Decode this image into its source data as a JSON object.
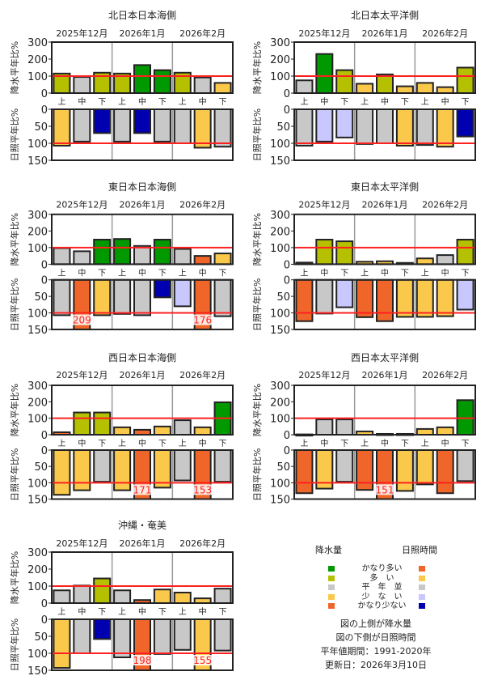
{
  "colors": {
    "precip": {
      "vh": "#009900",
      "h": "#b4c000",
      "n": "#c8c8c8",
      "l": "#fac84a",
      "vl": "#f0662a"
    },
    "sun": {
      "vh": "#f0662a",
      "h": "#fac84a",
      "n": "#c8c8c8",
      "l": "#c8c8ff",
      "vl": "#0000b0"
    },
    "ref_line": "#ff2020"
  },
  "chart_data": [
    {
      "type": "bar",
      "title": "北日本日本海側",
      "months": [
        "2025年12月",
        "2026年1月",
        "2026年2月"
      ],
      "categories": [
        "上",
        "中",
        "下",
        "上",
        "中",
        "下",
        "上",
        "中",
        "下"
      ],
      "precip": {
        "ylabel": "降水平年比%",
        "ylim": [
          0,
          300
        ],
        "ticks": [
          "0",
          "100",
          "200",
          "300"
        ],
        "values": [
          115,
          95,
          120,
          115,
          165,
          135,
          120,
          92,
          60
        ],
        "classes": [
          "h",
          "n",
          "h",
          "h",
          "vh",
          "vh",
          "h",
          "n",
          "l"
        ]
      },
      "sun": {
        "ylabel": "日照平年比%",
        "ylim": [
          0,
          150
        ],
        "ticks": [
          "0",
          "50",
          "100",
          "150"
        ],
        "values": [
          107,
          95,
          70,
          95,
          70,
          95,
          100,
          113,
          110
        ],
        "classes": [
          "h",
          "n",
          "vl",
          "n",
          "vl",
          "n",
          "n",
          "h",
          "n"
        ]
      }
    },
    {
      "type": "bar",
      "title": "北日本太平洋側",
      "months": [
        "2025年12月",
        "2026年1月",
        "2026年2月"
      ],
      "categories": [
        "上",
        "中",
        "下",
        "上",
        "中",
        "下",
        "上",
        "中",
        "下"
      ],
      "precip": {
        "ylabel": "降水平年比%",
        "ylim": [
          0,
          300
        ],
        "ticks": [
          "0",
          "100",
          "200",
          "300"
        ],
        "values": [
          75,
          230,
          135,
          55,
          110,
          40,
          60,
          35,
          150
        ],
        "classes": [
          "n",
          "vh",
          "h",
          "l",
          "h",
          "l",
          "l",
          "l",
          "h"
        ]
      },
      "sun": {
        "ylabel": "日照平年比%",
        "ylim": [
          0,
          150
        ],
        "ticks": [
          "0",
          "50",
          "100",
          "150"
        ],
        "values": [
          107,
          95,
          83,
          102,
          100,
          107,
          105,
          110,
          80
        ],
        "classes": [
          "n",
          "l",
          "l",
          "n",
          "n",
          "h",
          "n",
          "h",
          "vl"
        ]
      }
    },
    {
      "type": "bar",
      "title": "東日本日本海側",
      "months": [
        "2025年12月",
        "2026年1月",
        "2026年2月"
      ],
      "categories": [
        "上",
        "中",
        "下",
        "上",
        "中",
        "下",
        "上",
        "中",
        "下"
      ],
      "precip": {
        "ylabel": "降水平年比%",
        "ylim": [
          0,
          300
        ],
        "ticks": [
          "0",
          "100",
          "200",
          "300"
        ],
        "values": [
          97,
          78,
          148,
          152,
          110,
          148,
          92,
          50,
          65
        ],
        "classes": [
          "n",
          "n",
          "vh",
          "vh",
          "n",
          "vh",
          "n",
          "vl",
          "l"
        ]
      },
      "sun": {
        "ylabel": "日照平年比%",
        "ylim": [
          0,
          150
        ],
        "ticks": [
          "0",
          "50",
          "100",
          "150"
        ],
        "values": [
          107,
          209,
          107,
          103,
          107,
          53,
          80,
          176,
          110
        ],
        "classes": [
          "n",
          "vh",
          "h",
          "n",
          "n",
          "vl",
          "l",
          "vh",
          "n"
        ]
      }
    },
    {
      "type": "bar",
      "title": "東日本太平洋側",
      "months": [
        "2025年12月",
        "2026年1月",
        "2026年2月"
      ],
      "categories": [
        "上",
        "中",
        "下",
        "上",
        "中",
        "下",
        "上",
        "中",
        "下"
      ],
      "precip": {
        "ylabel": "降水平年比%",
        "ylim": [
          0,
          300
        ],
        "ticks": [
          "0",
          "100",
          "200",
          "300"
        ],
        "values": [
          10,
          148,
          138,
          15,
          18,
          8,
          35,
          55,
          148
        ],
        "classes": [
          "vl",
          "h",
          "h",
          "l",
          "l",
          "vl",
          "l",
          "n",
          "h"
        ]
      },
      "sun": {
        "ylabel": "日照平年比%",
        "ylim": [
          0,
          150
        ],
        "ticks": [
          "0",
          "50",
          "100",
          "150"
        ],
        "values": [
          125,
          102,
          83,
          113,
          125,
          112,
          112,
          110,
          90
        ],
        "classes": [
          "vh",
          "n",
          "l",
          "vh",
          "vh",
          "h",
          "h",
          "h",
          "l"
        ]
      }
    },
    {
      "type": "bar",
      "title": "西日本日本海側",
      "months": [
        "2025年12月",
        "2026年1月",
        "2026年2月"
      ],
      "categories": [
        "上",
        "中",
        "下",
        "上",
        "中",
        "下",
        "上",
        "中",
        "下"
      ],
      "precip": {
        "ylabel": "降水平年比%",
        "ylim": [
          0,
          300
        ],
        "ticks": [
          "0",
          "100",
          "200",
          "300"
        ],
        "values": [
          15,
          135,
          135,
          45,
          30,
          50,
          88,
          45,
          197
        ],
        "classes": [
          "vl",
          "h",
          "h",
          "l",
          "vl",
          "l",
          "n",
          "l",
          "vh"
        ]
      },
      "sun": {
        "ylabel": "日照平年比%",
        "ylim": [
          0,
          150
        ],
        "ticks": [
          "0",
          "50",
          "100",
          "150"
        ],
        "values": [
          137,
          123,
          97,
          123,
          171,
          115,
          93,
          153,
          97
        ],
        "classes": [
          "h",
          "h",
          "n",
          "h",
          "vh",
          "h",
          "n",
          "vh",
          "n"
        ]
      }
    },
    {
      "type": "bar",
      "title": "西日本太平洋側",
      "months": [
        "2025年12月",
        "2026年1月",
        "2026年2月"
      ],
      "categories": [
        "上",
        "中",
        "下",
        "上",
        "中",
        "下",
        "上",
        "中",
        "下"
      ],
      "precip": {
        "ylabel": "降水平年比%",
        "ylim": [
          0,
          300
        ],
        "ticks": [
          "0",
          "100",
          "200",
          "300"
        ],
        "values": [
          2,
          93,
          93,
          20,
          5,
          5,
          35,
          45,
          210
        ],
        "classes": [
          "n",
          "n",
          "n",
          "l",
          "vl",
          "vl",
          "l",
          "l",
          "vh"
        ]
      },
      "sun": {
        "ylabel": "日照平年比%",
        "ylim": [
          0,
          150
        ],
        "ticks": [
          "0",
          "50",
          "100",
          "150"
        ],
        "values": [
          132,
          118,
          97,
          122,
          151,
          125,
          105,
          132,
          95
        ],
        "classes": [
          "vh",
          "h",
          "n",
          "vh",
          "vh",
          "h",
          "h",
          "vh",
          "n"
        ]
      }
    },
    {
      "type": "bar",
      "title": "沖縄・奄美",
      "months": [
        "2025年12月",
        "2026年1月",
        "2026年2月"
      ],
      "categories": [
        "上",
        "中",
        "下",
        "上",
        "中",
        "下",
        "上",
        "中",
        "下"
      ],
      "precip": {
        "ylabel": "降水平年比%",
        "ylim": [
          0,
          300
        ],
        "ticks": [
          "0",
          "100",
          "200",
          "300"
        ],
        "values": [
          75,
          103,
          145,
          75,
          18,
          80,
          62,
          28,
          85
        ],
        "classes": [
          "n",
          "n",
          "h",
          "n",
          "vl",
          "l",
          "l",
          "l",
          "n"
        ]
      },
      "sun": {
        "ylabel": "日照平年比%",
        "ylim": [
          0,
          150
        ],
        "ticks": [
          "0",
          "50",
          "100",
          "150"
        ],
        "values": [
          143,
          100,
          58,
          112,
          198,
          102,
          90,
          155,
          92
        ],
        "classes": [
          "h",
          "n",
          "vl",
          "n",
          "vh",
          "n",
          "n",
          "h",
          "n"
        ]
      }
    }
  ],
  "legend": {
    "precip_header": "降水量",
    "sun_header": "日照時間",
    "rows": [
      {
        "label": "かなり多い",
        "c": "vh"
      },
      {
        "label": "多　い",
        "c": "h"
      },
      {
        "label": "平　年　並",
        "c": "n"
      },
      {
        "label": "少　な　い",
        "c": "l"
      },
      {
        "label": "かなり少ない",
        "c": "vl"
      }
    ],
    "notes": [
      "図の上側が降水量",
      "図の下側が日照時間",
      "平年値期間：1991-2020年",
      "更新日：2026年3月10日"
    ]
  }
}
